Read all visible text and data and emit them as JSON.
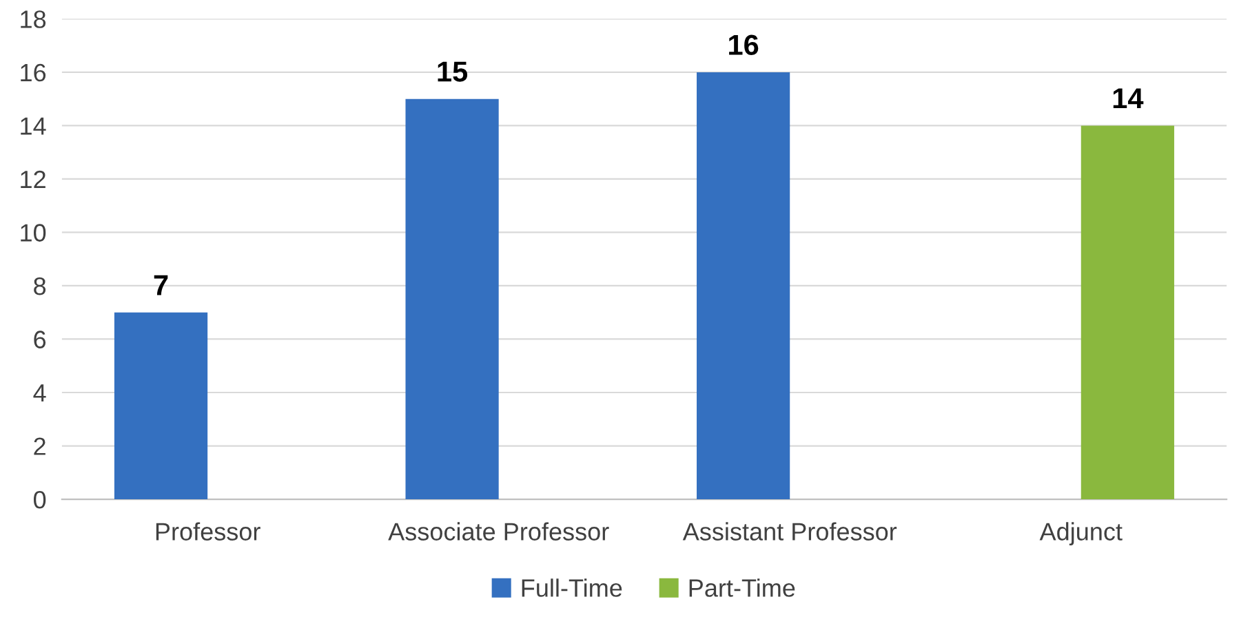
{
  "chart_data": {
    "type": "bar",
    "categories": [
      "Professor",
      "Associate Professor",
      "Assistant Professor",
      "Adjunct"
    ],
    "series": [
      {
        "name": "Full-Time",
        "color": "#3470c0",
        "values": [
          7,
          15,
          16,
          null
        ]
      },
      {
        "name": "Part-Time",
        "color": "#8ab83e",
        "values": [
          null,
          null,
          null,
          14
        ]
      }
    ],
    "ylim": [
      0,
      18
    ],
    "yticks": [
      0,
      2,
      4,
      6,
      8,
      10,
      12,
      14,
      16,
      18
    ],
    "grid": "y",
    "legend": "bottom",
    "data_labels": true
  }
}
